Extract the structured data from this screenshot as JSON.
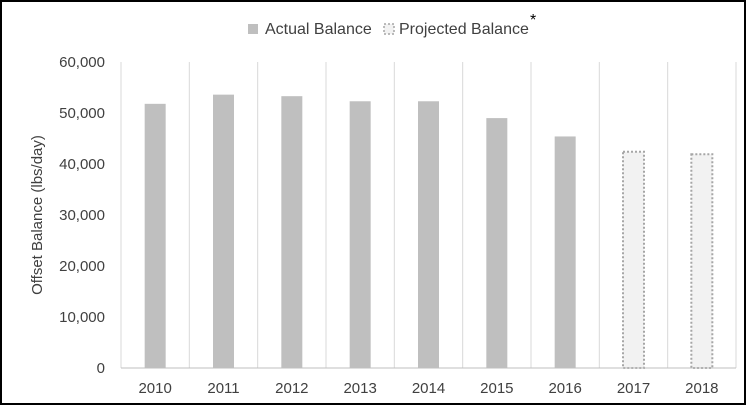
{
  "chart_data": {
    "type": "bar",
    "categories": [
      "2010",
      "2011",
      "2012",
      "2013",
      "2014",
      "2015",
      "2016",
      "2017",
      "2018"
    ],
    "series": [
      {
        "name": "Actual Balance",
        "values": [
          51800,
          53600,
          53300,
          52300,
          52300,
          49000,
          45400,
          null,
          null
        ],
        "color": "#bfbfbf",
        "style": "solid"
      },
      {
        "name": "Projected Balance",
        "values": [
          null,
          null,
          null,
          null,
          null,
          null,
          null,
          42400,
          41900
        ],
        "color": "#f2f2f2",
        "style": "dotted-outline"
      }
    ],
    "legend_marker": "*",
    "title": "",
    "xlabel": "",
    "ylabel": "Offset Balance (lbs/day)",
    "ylim": [
      0,
      60000
    ],
    "yticks": [
      "0",
      "10,000",
      "20,000",
      "30,000",
      "40,000",
      "50,000",
      "60,000"
    ],
    "grid": "vertical-category-lines",
    "legend_position": "top-center"
  }
}
